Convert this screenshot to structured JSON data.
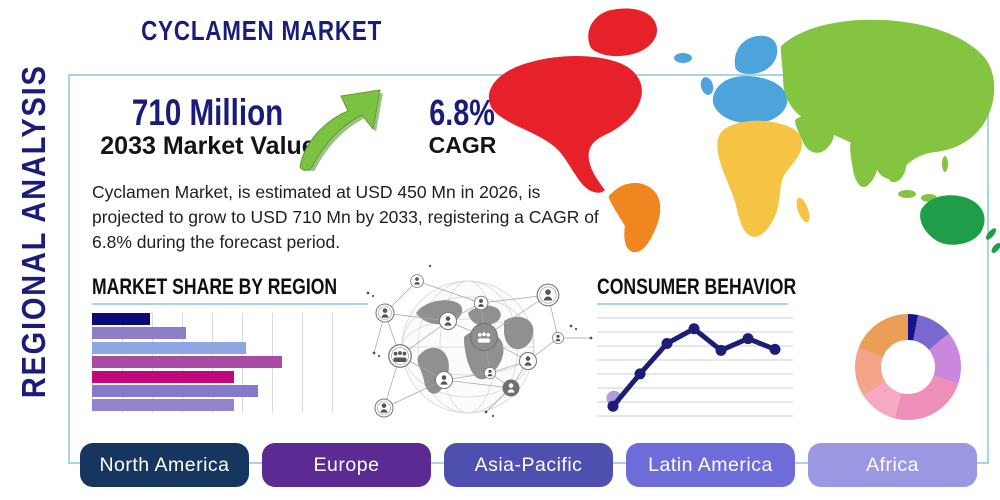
{
  "page": {
    "title": "CYCLAMEN MARKET",
    "side_label": "REGIONAL ANALYSIS"
  },
  "stats": {
    "market_value": "710 Million",
    "market_value_label": "2033 Market Value",
    "cagr_value": "6.8%",
    "cagr_label": "CAGR",
    "description": "Cyclamen Market, is estimated at USD 450 Mn in 2026, is projected to grow to USD 710 Mn by 2033, registering a CAGR of 6.8% during the forecast period."
  },
  "colors": {
    "accent_navy": "#1b1b7a",
    "panel_border": "#a9d3e6",
    "heading_underline": "#a6d3e6",
    "growth_arrow_green": "#7cc242",
    "growth_arrow_shadow": "#4e8c28"
  },
  "chart_data": [
    {
      "type": "bar",
      "title": "MARKET SHARE BY REGION",
      "orientation": "horizontal",
      "values": [
        24,
        39,
        64,
        79,
        59,
        69,
        59
      ],
      "colors": [
        "#0a0a78",
        "#8d7fc7",
        "#8ea6e2",
        "#a94ba5",
        "#c2067c",
        "#8678cb",
        "#9484cf"
      ],
      "xlim": [
        0,
        100
      ],
      "grid": true,
      "axis_labels": "none"
    },
    {
      "type": "line",
      "title": "CONSUMER BEHAVIOR",
      "x": [
        1,
        2,
        3,
        4,
        5,
        6,
        7
      ],
      "values": [
        10,
        43,
        74,
        89,
        67,
        79,
        68
      ],
      "ylim": [
        0,
        100
      ],
      "line_color": "#1d1d78",
      "marker_color": "#1d1d78",
      "start_halo_color": "#b19ae0",
      "grid": true,
      "axis_labels": "none"
    },
    {
      "type": "pie",
      "style": "donut",
      "segments": [
        {
          "value": 3,
          "color": "#14148c"
        },
        {
          "value": 11,
          "color": "#7b68cf"
        },
        {
          "value": 16,
          "color": "#c988dd"
        },
        {
          "value": 24,
          "color": "#ee8fb9"
        },
        {
          "value": 12,
          "color": "#f6a8c4"
        },
        {
          "value": 15,
          "color": "#f4a489"
        },
        {
          "value": 19,
          "color": "#eb9e55"
        }
      ]
    }
  ],
  "regions": [
    {
      "label": "North America",
      "color": "#16355f"
    },
    {
      "label": "Europe",
      "color": "#5b2a92"
    },
    {
      "label": "Asia-Pacific",
      "color": "#4e4fae"
    },
    {
      "label": "Latin America",
      "color": "#6e6cd8"
    },
    {
      "label": "Africa",
      "color": "#9b97e2"
    }
  ],
  "map": {
    "north_america": "#e62129",
    "greenland": "#e62129",
    "south_america": "#f0861f",
    "europe": "#4da4dc",
    "iceland": "#4da4dc",
    "africa": "#f6c445",
    "asia": "#84c441",
    "middle_east": "#84c441",
    "oceania": "#1f9d49"
  },
  "icons": {
    "growth_arrow": "up-right-curved-arrow",
    "globe_graphic": "globe-people-network"
  }
}
